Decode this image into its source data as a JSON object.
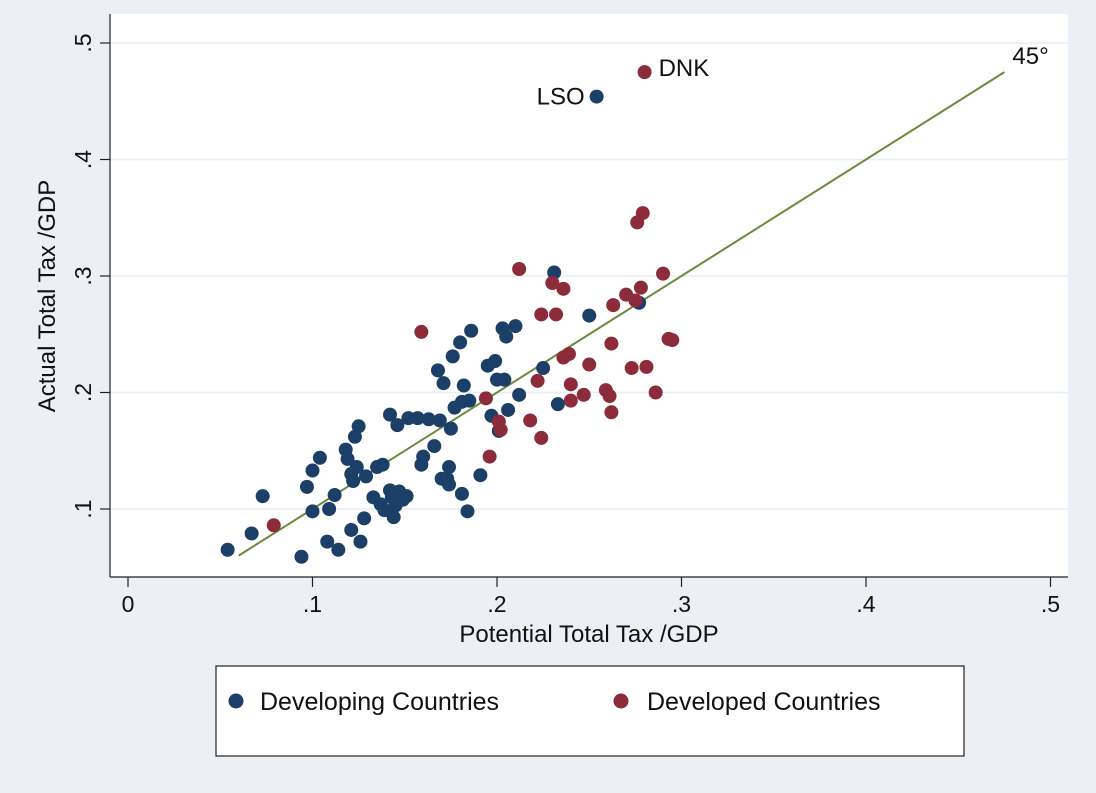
{
  "chart_data": {
    "type": "scatter",
    "xlabel": "Potential Total Tax /GDP",
    "ylabel": "Actual Total Tax /GDP",
    "xlim": [
      0,
      0.5
    ],
    "ylim": [
      0.05,
      0.5
    ],
    "x_ticks": [
      0,
      0.1,
      0.2,
      0.3,
      0.4,
      0.5
    ],
    "x_tick_labels": [
      "0",
      ".1",
      ".2",
      ".3",
      ".4",
      ".5"
    ],
    "y_ticks": [
      0.1,
      0.2,
      0.3,
      0.4,
      0.5
    ],
    "y_tick_labels": [
      ".1",
      ".2",
      ".3",
      ".4",
      ".5"
    ],
    "grid": "horizontal",
    "legend_position": "bottom",
    "reference_line": {
      "label": "45°",
      "from": [
        0.06,
        0.06
      ],
      "to": [
        0.475,
        0.475
      ],
      "color": "#6a8a3c"
    },
    "series": [
      {
        "name": "Developing Countries",
        "color": "#1b3f66",
        "points": [
          [
            0.054,
            0.065
          ],
          [
            0.067,
            0.079
          ],
          [
            0.073,
            0.111
          ],
          [
            0.094,
            0.059
          ],
          [
            0.097,
            0.119
          ],
          [
            0.1,
            0.133
          ],
          [
            0.1,
            0.098
          ],
          [
            0.104,
            0.144
          ],
          [
            0.108,
            0.072
          ],
          [
            0.109,
            0.1
          ],
          [
            0.112,
            0.112
          ],
          [
            0.114,
            0.065
          ],
          [
            0.118,
            0.151
          ],
          [
            0.119,
            0.143
          ],
          [
            0.121,
            0.13
          ],
          [
            0.121,
            0.082
          ],
          [
            0.122,
            0.124
          ],
          [
            0.123,
            0.162
          ],
          [
            0.124,
            0.136
          ],
          [
            0.125,
            0.171
          ],
          [
            0.126,
            0.072
          ],
          [
            0.128,
            0.092
          ],
          [
            0.129,
            0.128
          ],
          [
            0.133,
            0.11
          ],
          [
            0.135,
            0.136
          ],
          [
            0.137,
            0.104
          ],
          [
            0.138,
            0.138
          ],
          [
            0.139,
            0.099
          ],
          [
            0.142,
            0.181
          ],
          [
            0.142,
            0.116
          ],
          [
            0.143,
            0.11
          ],
          [
            0.144,
            0.093
          ],
          [
            0.145,
            0.103
          ],
          [
            0.146,
            0.172
          ],
          [
            0.147,
            0.115
          ],
          [
            0.149,
            0.108
          ],
          [
            0.151,
            0.111
          ],
          [
            0.152,
            0.178
          ],
          [
            0.157,
            0.178
          ],
          [
            0.159,
            0.138
          ],
          [
            0.16,
            0.145
          ],
          [
            0.163,
            0.177
          ],
          [
            0.166,
            0.154
          ],
          [
            0.168,
            0.219
          ],
          [
            0.169,
            0.176
          ],
          [
            0.17,
            0.126
          ],
          [
            0.171,
            0.208
          ],
          [
            0.173,
            0.126
          ],
          [
            0.174,
            0.136
          ],
          [
            0.174,
            0.121
          ],
          [
            0.175,
            0.169
          ],
          [
            0.176,
            0.231
          ],
          [
            0.177,
            0.187
          ],
          [
            0.18,
            0.243
          ],
          [
            0.181,
            0.113
          ],
          [
            0.181,
            0.192
          ],
          [
            0.182,
            0.206
          ],
          [
            0.184,
            0.098
          ],
          [
            0.185,
            0.193
          ],
          [
            0.186,
            0.253
          ],
          [
            0.191,
            0.129
          ],
          [
            0.195,
            0.223
          ],
          [
            0.197,
            0.18
          ],
          [
            0.199,
            0.227
          ],
          [
            0.2,
            0.211
          ],
          [
            0.201,
            0.167
          ],
          [
            0.203,
            0.255
          ],
          [
            0.204,
            0.211
          ],
          [
            0.205,
            0.248
          ],
          [
            0.206,
            0.185
          ],
          [
            0.21,
            0.257
          ],
          [
            0.212,
            0.198
          ],
          [
            0.225,
            0.221
          ],
          [
            0.231,
            0.303
          ],
          [
            0.233,
            0.19
          ],
          [
            0.25,
            0.266
          ],
          [
            0.254,
            0.454
          ],
          [
            0.277,
            0.277
          ]
        ]
      },
      {
        "name": "Developed Countries",
        "color": "#8c2b3a",
        "points": [
          [
            0.079,
            0.086
          ],
          [
            0.159,
            0.252
          ],
          [
            0.194,
            0.195
          ],
          [
            0.196,
            0.145
          ],
          [
            0.201,
            0.175
          ],
          [
            0.202,
            0.168
          ],
          [
            0.212,
            0.306
          ],
          [
            0.218,
            0.176
          ],
          [
            0.222,
            0.21
          ],
          [
            0.224,
            0.267
          ],
          [
            0.224,
            0.161
          ],
          [
            0.23,
            0.294
          ],
          [
            0.232,
            0.267
          ],
          [
            0.236,
            0.289
          ],
          [
            0.236,
            0.23
          ],
          [
            0.239,
            0.233
          ],
          [
            0.24,
            0.207
          ],
          [
            0.24,
            0.193
          ],
          [
            0.247,
            0.198
          ],
          [
            0.25,
            0.224
          ],
          [
            0.259,
            0.202
          ],
          [
            0.261,
            0.197
          ],
          [
            0.262,
            0.242
          ],
          [
            0.262,
            0.183
          ],
          [
            0.263,
            0.275
          ],
          [
            0.27,
            0.284
          ],
          [
            0.273,
            0.221
          ],
          [
            0.275,
            0.279
          ],
          [
            0.276,
            0.346
          ],
          [
            0.278,
            0.29
          ],
          [
            0.279,
            0.354
          ],
          [
            0.281,
            0.222
          ],
          [
            0.286,
            0.2
          ],
          [
            0.29,
            0.302
          ],
          [
            0.293,
            0.246
          ],
          [
            0.295,
            0.245
          ],
          [
            0.28,
            0.475
          ]
        ]
      }
    ],
    "annotations": [
      {
        "text": "LSO",
        "x": 0.254,
        "y": 0.454,
        "anchor": "left"
      },
      {
        "text": "DNK",
        "x": 0.28,
        "y": 0.475,
        "anchor": "right"
      },
      {
        "text": "45°",
        "x": 0.475,
        "y": 0.475,
        "anchor": "end-of-line"
      }
    ]
  },
  "legend": {
    "items": [
      {
        "label": "Developing Countries",
        "color": "#1b3f66"
      },
      {
        "label": "Developed Countries",
        "color": "#8c2b3a"
      }
    ]
  },
  "colors": {
    "page_background": "#eaf0f4",
    "plot_background": "#ffffff",
    "gridline": "#e8eef2"
  }
}
